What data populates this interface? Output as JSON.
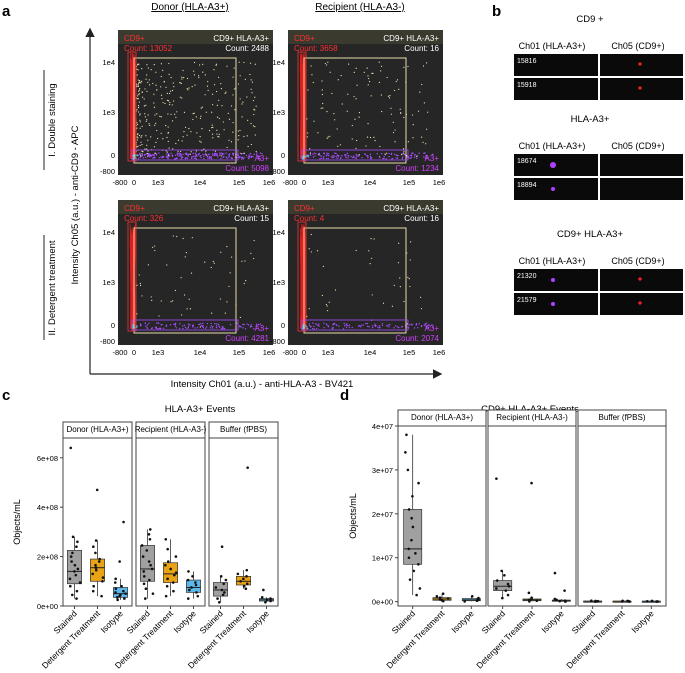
{
  "panel_labels": {
    "a": "a",
    "b": "b",
    "c": "c",
    "d": "d"
  },
  "panel_a": {
    "col_headers": [
      "Donor (HLA-A3+)",
      "Recipient (HLA-A3-)"
    ],
    "row_headers": [
      "I. Double staining",
      "II. Detergent treatment"
    ],
    "y_axis_title": "Intensity Ch05 (a.u.) - anti-CD9 - APC",
    "x_axis_title": "Intensity Ch01 (a.u.) - anti-HLA-A3 - BV421",
    "y_ticks": [
      "1e4",
      "1e3",
      "0",
      "-800"
    ],
    "x_ticks": [
      "-800",
      "0",
      "1e3",
      "1e4",
      "1e5",
      "1e6"
    ],
    "plots": [
      {
        "cd9_label": "CD9+",
        "cd9_count": "Count: 13052",
        "dp_label": "CD9+ HLA-A3+",
        "dp_count": "Count: 2488",
        "a3_label": "A3+",
        "a3_count": "Count: 5098"
      },
      {
        "cd9_label": "CD9+",
        "cd9_count": "Count: 3658",
        "dp_label": "CD9+ HLA-A3+",
        "dp_count": "Count: 16",
        "a3_label": "A3+",
        "a3_count": "Count: 1234"
      },
      {
        "cd9_label": "CD9+",
        "cd9_count": "Count: 326",
        "dp_label": "CD9+ HLA-A3+",
        "dp_count": "Count: 15",
        "a3_label": "A3+",
        "a3_count": "Count: 4281"
      },
      {
        "cd9_label": "CD9+",
        "cd9_count": "Count: 4",
        "dp_label": "CD9+ HLA-A3+",
        "dp_count": "Count: 16",
        "a3_label": "A3+",
        "a3_count": "Count: 2074"
      }
    ]
  },
  "panel_b": {
    "groups": [
      {
        "title": "CD9 +",
        "ch01": "Ch01 (HLA-A3+)",
        "ch05": "Ch05 (CD9+)",
        "ids": [
          "15816",
          "15918"
        ]
      },
      {
        "title": "HLA-A3+",
        "ch01": "Ch01 (HLA-A3+)",
        "ch05": "Ch05 (CD9+)",
        "ids": [
          "18674",
          "18894"
        ]
      },
      {
        "title": "CD9+ HLA-A3+",
        "ch01": "Ch01 (HLA-A3+)",
        "ch05": "Ch05 (CD9+)",
        "ids": [
          "21320",
          "21579"
        ]
      }
    ]
  },
  "colors": {
    "stained": "#a0a0a0",
    "detergent": "#e8a317",
    "isotype": "#5bb8e8"
  },
  "chart_data": [
    {
      "type": "box",
      "title": "HLA-A3+ Events",
      "ylabel": "Objects/mL",
      "ylim": [
        0,
        680000000
      ],
      "yticks": [
        0,
        200000000,
        400000000,
        600000000
      ],
      "ytick_labels": [
        "0e+00",
        "2e+08",
        "4e+08",
        "6e+08"
      ],
      "facets": [
        "Donor (HLA-A3+)",
        "Recipient (HLA-A3-)",
        "Buffer (fPBS)"
      ],
      "categories": [
        "Stained",
        "Detergent Treatment",
        "Isotype"
      ],
      "series": [
        {
          "facet": "Donor (HLA-A3+)",
          "category": "Stained",
          "q1": 90000000,
          "median": 140000000,
          "q3": 225000000,
          "min": 30000000,
          "max": 280000000,
          "points": [
            30000000,
            45000000,
            60000000,
            80000000,
            95000000,
            110000000,
            125000000,
            140000000,
            150000000,
            165000000,
            180000000,
            200000000,
            215000000,
            240000000,
            260000000,
            280000000,
            640000000
          ]
        },
        {
          "facet": "Donor (HLA-A3+)",
          "category": "Detergent Treatment",
          "q1": 100000000,
          "median": 155000000,
          "q3": 190000000,
          "min": 40000000,
          "max": 265000000,
          "points": [
            40000000,
            60000000,
            80000000,
            100000000,
            115000000,
            130000000,
            145000000,
            155000000,
            165000000,
            180000000,
            190000000,
            215000000,
            240000000,
            265000000,
            470000000
          ]
        },
        {
          "facet": "Donor (HLA-A3+)",
          "category": "Isotype",
          "q1": 35000000,
          "median": 50000000,
          "q3": 75000000,
          "min": 25000000,
          "max": 110000000,
          "points": [
            25000000,
            30000000,
            35000000,
            40000000,
            45000000,
            50000000,
            55000000,
            60000000,
            70000000,
            80000000,
            95000000,
            110000000,
            180000000,
            340000000
          ]
        },
        {
          "facet": "Recipient (HLA-A3-)",
          "category": "Stained",
          "q1": 100000000,
          "median": 150000000,
          "q3": 245000000,
          "min": 30000000,
          "max": 310000000,
          "points": [
            30000000,
            50000000,
            70000000,
            90000000,
            105000000,
            120000000,
            140000000,
            150000000,
            165000000,
            180000000,
            200000000,
            225000000,
            245000000,
            270000000,
            290000000,
            310000000
          ]
        },
        {
          "facet": "Recipient (HLA-A3-)",
          "category": "Detergent Treatment",
          "q1": 95000000,
          "median": 130000000,
          "q3": 175000000,
          "min": 40000000,
          "max": 270000000,
          "points": [
            40000000,
            60000000,
            80000000,
            95000000,
            110000000,
            125000000,
            135000000,
            150000000,
            165000000,
            180000000,
            200000000,
            230000000,
            270000000
          ]
        },
        {
          "facet": "Recipient (HLA-A3-)",
          "category": "Isotype",
          "q1": 55000000,
          "median": 75000000,
          "q3": 105000000,
          "min": 30000000,
          "max": 140000000,
          "points": [
            30000000,
            40000000,
            55000000,
            65000000,
            75000000,
            85000000,
            95000000,
            105000000,
            120000000,
            140000000
          ]
        },
        {
          "facet": "Buffer (fPBS)",
          "category": "Stained",
          "q1": 40000000,
          "median": 65000000,
          "q3": 95000000,
          "min": 15000000,
          "max": 120000000,
          "points": [
            15000000,
            30000000,
            45000000,
            55000000,
            65000000,
            75000000,
            90000000,
            105000000,
            120000000,
            240000000
          ]
        },
        {
          "facet": "Buffer (fPBS)",
          "category": "Detergent Treatment",
          "q1": 85000000,
          "median": 100000000,
          "q3": 120000000,
          "min": 70000000,
          "max": 145000000,
          "points": [
            70000000,
            80000000,
            90000000,
            100000000,
            110000000,
            120000000,
            130000000,
            145000000,
            560000000
          ]
        },
        {
          "facet": "Buffer (fPBS)",
          "category": "Isotype",
          "q1": 20000000,
          "median": 25000000,
          "q3": 30000000,
          "min": 15000000,
          "max": 35000000,
          "points": [
            15000000,
            20000000,
            25000000,
            30000000,
            35000000,
            65000000
          ]
        }
      ]
    },
    {
      "type": "box",
      "title": "CD9+ HLA-A3+  Events",
      "ylabel": "Objects/mL",
      "ylim": [
        -1000000,
        40000000
      ],
      "yticks": [
        0,
        10000000,
        20000000,
        30000000,
        40000000
      ],
      "ytick_labels": [
        "0e+00",
        "1e+07",
        "2e+07",
        "3e+07",
        "4e+07"
      ],
      "facets": [
        "Donor (HLA-A3+)",
        "Recipient (HLA-A3-)",
        "Buffer (fPBS)"
      ],
      "categories": [
        "Stained",
        "Detergent Treatment",
        "Isotype"
      ],
      "series": [
        {
          "facet": "Donor (HLA-A3+)",
          "category": "Stained",
          "q1": 8500000,
          "median": 12000000,
          "q3": 21000000,
          "min": 1500000,
          "max": 38000000,
          "points": [
            1500000,
            3000000,
            5000000,
            7000000,
            8500000,
            10000000,
            11000000,
            12000000,
            14000000,
            17000000,
            19000000,
            21000000,
            24000000,
            27000000,
            30000000,
            34000000,
            38000000
          ]
        },
        {
          "facet": "Donor (HLA-A3+)",
          "category": "Detergent Treatment",
          "q1": 300000,
          "median": 600000,
          "q3": 900000,
          "min": 100000,
          "max": 1800000,
          "points": [
            100000,
            300000,
            500000,
            700000,
            900000,
            1200000,
            1800000
          ]
        },
        {
          "facet": "Donor (HLA-A3+)",
          "category": "Isotype",
          "q1": 200000,
          "median": 400000,
          "q3": 700000,
          "min": 50000,
          "max": 1200000,
          "points": [
            50000,
            200000,
            400000,
            600000,
            800000,
            1200000
          ]
        },
        {
          "facet": "Recipient (HLA-A3-)",
          "category": "Stained",
          "q1": 2500000,
          "median": 3500000,
          "q3": 4800000,
          "min": 800000,
          "max": 7000000,
          "points": [
            800000,
            1500000,
            2500000,
            3000000,
            3500000,
            4000000,
            4800000,
            6000000,
            7000000,
            28000000
          ]
        },
        {
          "facet": "Recipient (HLA-A3-)",
          "category": "Detergent Treatment",
          "q1": 200000,
          "median": 400000,
          "q3": 600000,
          "min": 50000,
          "max": 900000,
          "points": [
            50000,
            200000,
            400000,
            600000,
            900000,
            2000000,
            27000000
          ]
        },
        {
          "facet": "Recipient (HLA-A3-)",
          "category": "Isotype",
          "q1": 100000,
          "median": 200000,
          "q3": 350000,
          "min": 0,
          "max": 600000,
          "points": [
            0,
            100000,
            200000,
            400000,
            600000,
            2500000,
            6500000
          ]
        },
        {
          "facet": "Buffer (fPBS)",
          "category": "Stained",
          "q1": 50000,
          "median": 80000,
          "q3": 120000,
          "min": 0,
          "max": 200000,
          "points": [
            0,
            50000,
            100000,
            150000,
            200000
          ]
        },
        {
          "facet": "Buffer (fPBS)",
          "category": "Detergent Treatment",
          "q1": 50000,
          "median": 80000,
          "q3": 110000,
          "min": 0,
          "max": 180000,
          "points": [
            0,
            50000,
            100000,
            150000,
            180000
          ]
        },
        {
          "facet": "Buffer (fPBS)",
          "category": "Isotype",
          "q1": 40000,
          "median": 70000,
          "q3": 100000,
          "min": 0,
          "max": 160000,
          "points": [
            0,
            40000,
            80000,
            120000,
            160000
          ]
        }
      ]
    }
  ]
}
